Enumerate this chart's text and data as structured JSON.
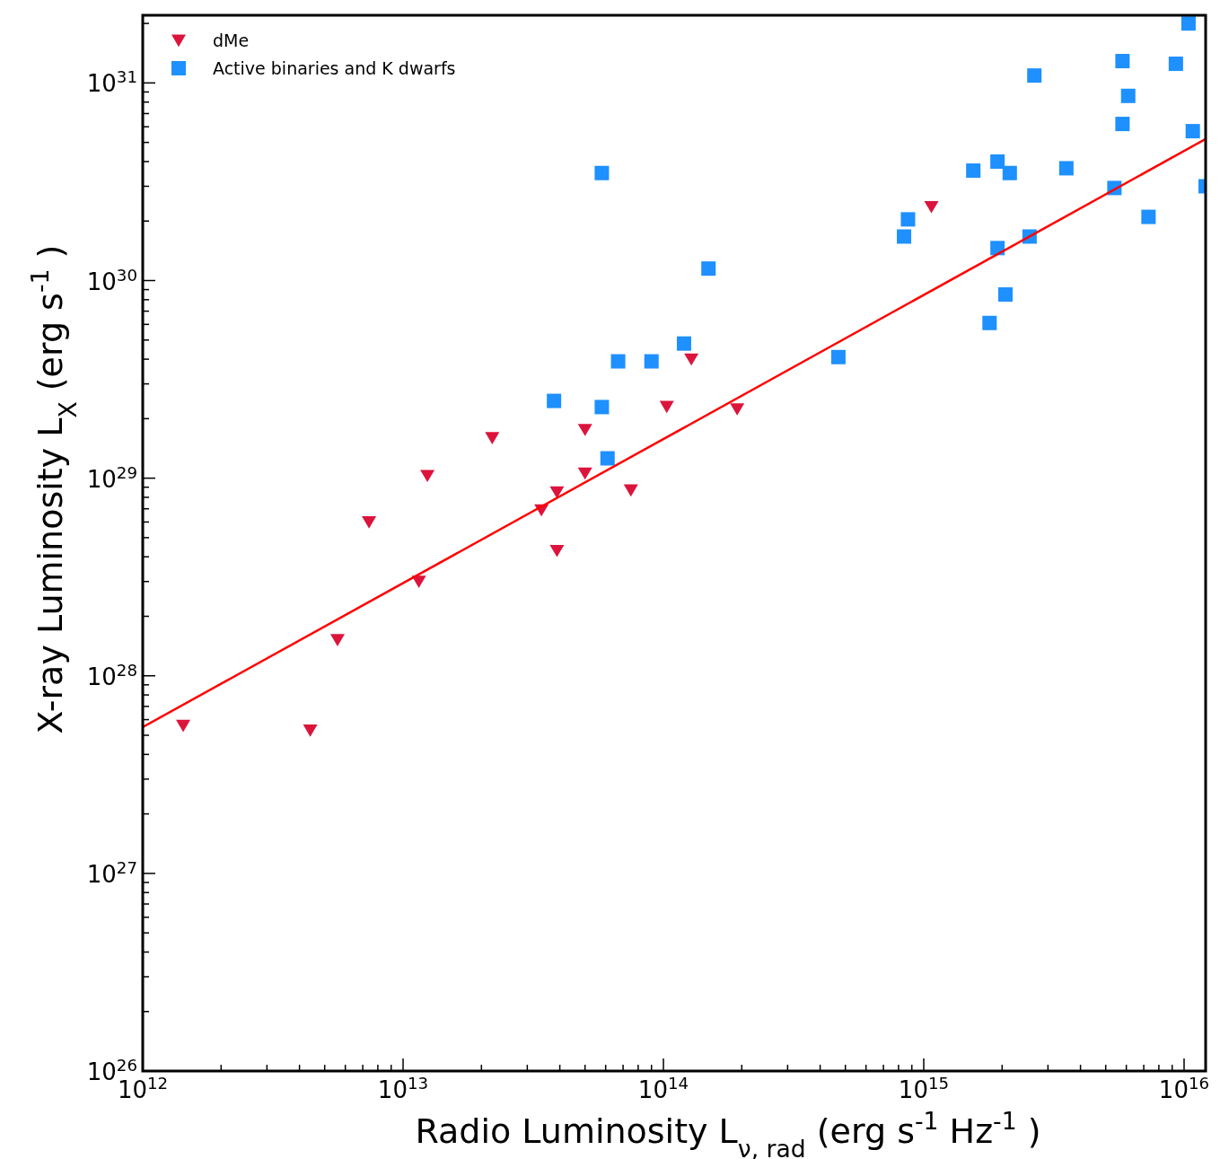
{
  "chart_data": {
    "type": "scatter",
    "xlabel": "Radio Luminosity  L$_{ν, rad}$ (erg s$^{-1}$ Hz$^{-1}$)",
    "ylabel": "X-ray Luminosity L$_{X}$ (erg s$^{-1}$)",
    "log": "xy",
    "legend": "top left",
    "xlim": [
      1000000000000.0,
      1.21e+16
    ],
    "ylim": [
      1e+26,
      2.2e+31
    ],
    "xticks": [
      {
        "value": 1000000000000.0,
        "label": "10$^{12}$"
      },
      {
        "value": 2000000000000.0,
        "label": null
      },
      {
        "value": 3000000000000.0,
        "label": null
      },
      {
        "value": 4000000000000.0,
        "label": null
      },
      {
        "value": 5000000000000.0,
        "label": null
      },
      {
        "value": 6000000000000.0,
        "label": null
      },
      {
        "value": 7000000000000.0,
        "label": null
      },
      {
        "value": 8000000000000.0,
        "label": null
      },
      {
        "value": 9000000000000.0,
        "label": null
      },
      {
        "value": 10000000000000.0,
        "label": "10$^{13}$"
      },
      {
        "value": 20000000000000.0,
        "label": null
      },
      {
        "value": 30000000000000.0,
        "label": null
      },
      {
        "value": 40000000000000.0,
        "label": null
      },
      {
        "value": 50000000000000.0,
        "label": null
      },
      {
        "value": 60000000000000.0,
        "label": null
      },
      {
        "value": 70000000000000.0,
        "label": null
      },
      {
        "value": 80000000000000.0,
        "label": null
      },
      {
        "value": 90000000000000.0,
        "label": null
      },
      {
        "value": 100000000000000.0,
        "label": "10$^{14}$"
      },
      {
        "value": 200000000000000.0,
        "label": null
      },
      {
        "value": 300000000000000.0,
        "label": null
      },
      {
        "value": 400000000000000.0,
        "label": null
      },
      {
        "value": 500000000000000.0,
        "label": null
      },
      {
        "value": 600000000000000.0,
        "label": null
      },
      {
        "value": 700000000000000.0,
        "label": null
      },
      {
        "value": 800000000000000.0,
        "label": null
      },
      {
        "value": 900000000000000.0,
        "label": null
      },
      {
        "value": 1000000000000000.0,
        "label": "10$^{15}$"
      },
      {
        "value": 2000000000000000.0,
        "label": null
      },
      {
        "value": 3000000000000000.0,
        "label": null
      },
      {
        "value": 4000000000000000.0,
        "label": null
      },
      {
        "value": 5000000000000000.0,
        "label": null
      },
      {
        "value": 6000000000000000.0,
        "label": null
      },
      {
        "value": 7000000000000000.0,
        "label": null
      },
      {
        "value": 8000000000000000.0,
        "label": null
      },
      {
        "value": 9000000000000000.0,
        "label": null
      },
      {
        "value": 1e+16,
        "label": "10$^{16}$"
      }
    ],
    "yticks": [
      {
        "value": 1e+26,
        "label": "10$^{26}$"
      },
      {
        "value": 2e+26,
        "label": null
      },
      {
        "value": 3e+26,
        "label": null
      },
      {
        "value": 4e+26,
        "label": null
      },
      {
        "value": 5e+26,
        "label": null
      },
      {
        "value": 6e+26,
        "label": null
      },
      {
        "value": 7e+26,
        "label": null
      },
      {
        "value": 8e+26,
        "label": null
      },
      {
        "value": 9e+26,
        "label": null
      },
      {
        "value": 1e+27,
        "label": "10$^{27}$"
      },
      {
        "value": 2e+27,
        "label": null
      },
      {
        "value": 3e+27,
        "label": null
      },
      {
        "value": 4e+27,
        "label": null
      },
      {
        "value": 5e+27,
        "label": null
      },
      {
        "value": 6e+27,
        "label": null
      },
      {
        "value": 7e+27,
        "label": null
      },
      {
        "value": 8e+27,
        "label": null
      },
      {
        "value": 9e+27,
        "label": null
      },
      {
        "value": 1e+28,
        "label": "10$^{28}$"
      },
      {
        "value": 2e+28,
        "label": null
      },
      {
        "value": 3e+28,
        "label": null
      },
      {
        "value": 4e+28,
        "label": null
      },
      {
        "value": 5e+28,
        "label": null
      },
      {
        "value": 6e+28,
        "label": null
      },
      {
        "value": 7e+28,
        "label": null
      },
      {
        "value": 8e+28,
        "label": null
      },
      {
        "value": 9e+28,
        "label": null
      },
      {
        "value": 1e+29,
        "label": "10$^{29}$"
      },
      {
        "value": 2e+29,
        "label": null
      },
      {
        "value": 3e+29,
        "label": null
      },
      {
        "value": 4e+29,
        "label": null
      },
      {
        "value": 5e+29,
        "label": null
      },
      {
        "value": 6e+29,
        "label": null
      },
      {
        "value": 7e+29,
        "label": null
      },
      {
        "value": 8e+29,
        "label": null
      },
      {
        "value": 9e+29,
        "label": null
      },
      {
        "value": 1e+30,
        "label": "10$^{30}$"
      },
      {
        "value": 2e+30,
        "label": null
      },
      {
        "value": 3e+30,
        "label": null
      },
      {
        "value": 4e+30,
        "label": null
      },
      {
        "value": 5e+30,
        "label": null
      },
      {
        "value": 6e+30,
        "label": null
      },
      {
        "value": 7e+30,
        "label": null
      },
      {
        "value": 8e+30,
        "label": null
      },
      {
        "value": 9e+30,
        "label": null
      },
      {
        "value": 1e+31,
        "label": "10$^{31}$"
      },
      {
        "value": 2e+31,
        "label": null
      }
    ],
    "series": [
      {
        "name": "dMe",
        "marker": "triangle",
        "color": "#dc143c",
        "x": [
          1430000000000.0,
          4400000000000.0,
          5600000000000.0,
          7400000000000.0,
          11500000000000.0,
          12400000000000.0,
          22000000000000.0,
          34000000000000.0,
          39000000000000.0,
          39000000000000.0,
          50000000000000.0,
          50000000000000.0,
          75000000000000.0,
          103000000000000.0,
          128000000000000.0,
          192000000000000.0,
          1070000000000000.0
        ],
        "values": [
          5.6e+27,
          5.3e+27,
          1.52e+28,
          6e+28,
          3e+28,
          1.03e+29,
          1.6e+29,
          6.9e+28,
          8.5e+28,
          4.3e+28,
          1.76e+29,
          1.06e+29,
          8.7e+28,
          2.3e+29,
          4e+29,
          2.24e+29,
          2.36e+30
        ]
      },
      {
        "name": "Active binaries and K dwarfs",
        "marker": "square",
        "color": "#1e90ff",
        "x": [
          58000000000000.0,
          38000000000000.0,
          58000000000000.0,
          61000000000000.0,
          67000000000000.0,
          90000000000000.0,
          120000000000000.0,
          149000000000000.0,
          470000000000000.0,
          840000000000000.0,
          870000000000000.0,
          1550000000000000.0,
          1920000000000000.0,
          2140000000000000.0,
          1920000000000000.0,
          1790000000000000.0,
          2060000000000000.0,
          2550000000000000.0,
          2660000000000000.0,
          3530000000000000.0,
          5400000000000000.0,
          5800000000000000.0,
          5800000000000000.0,
          6100000000000000.0,
          7300000000000000.0,
          9300000000000000.0,
          1.04e+16,
          1.08e+16,
          1.21e+16
        ],
        "values": [
          3.5e+30,
          2.46e+29,
          2.29e+29,
          1.26e+29,
          3.9e+29,
          3.9e+29,
          4.8e+29,
          1.15e+30,
          4.1e+29,
          1.67e+30,
          2.04e+30,
          3.6e+30,
          4e+30,
          3.5e+30,
          1.46e+30,
          6.1e+29,
          8.5e+29,
          1.67e+30,
          1.09e+31,
          3.7e+30,
          2.94e+30,
          1.29e+31,
          6.2e+30,
          8.6e+30,
          2.1e+30,
          1.25e+31,
          2e+31,
          5.7e+30,
          3e+30
        ]
      },
      {
        "type": "line",
        "marker": "none",
        "color": "#ff0000",
        "x": [
          1000000000000.0,
          1.21e+16
        ],
        "values": [
          5.5e+27,
          5.2e+30
        ]
      }
    ]
  }
}
